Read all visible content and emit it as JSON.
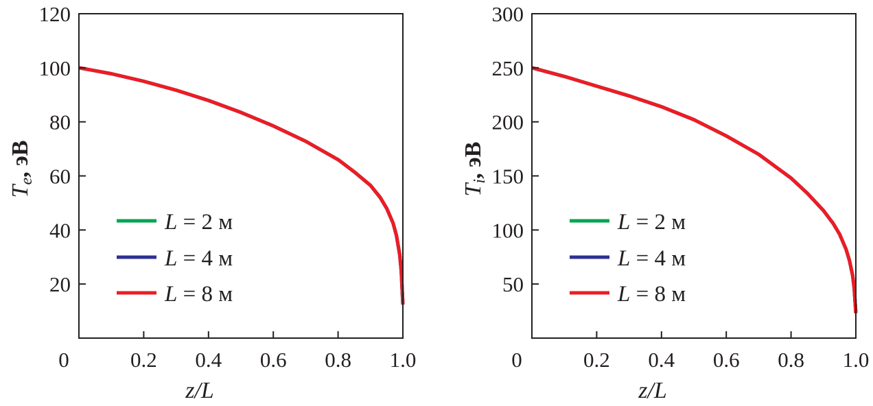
{
  "chart_data": [
    {
      "type": "line",
      "title": "",
      "xlabel": "z/L",
      "ylabel_main": "T",
      "ylabel_sub": "e",
      "ylabel_unit": ", эВ",
      "xlim": [
        0,
        1.0
      ],
      "ylim": [
        0,
        120
      ],
      "xticks": [
        0.2,
        0.4,
        0.6,
        0.8
      ],
      "xtick_labels": [
        "0",
        "0.2",
        "0.4",
        "0.6",
        "0.8",
        "1.0"
      ],
      "yticks": [
        20,
        40,
        60,
        80,
        100,
        120
      ],
      "ytick_labels": [
        "20",
        "40",
        "60",
        "80",
        "100",
        "120"
      ],
      "legend_placement": "lower-left",
      "x": [
        0,
        0.1,
        0.2,
        0.3,
        0.4,
        0.5,
        0.6,
        0.7,
        0.8,
        0.85,
        0.9,
        0.93,
        0.95,
        0.97,
        0.98,
        0.99,
        0.995,
        1.0
      ],
      "series": [
        {
          "name": "L = 2 м",
          "color": "#00a651",
          "values": [
            100,
            97.8,
            95,
            91.7,
            87.9,
            83.5,
            78.5,
            72.8,
            66,
            61.5,
            56.5,
            52,
            48,
            42.5,
            38,
            31,
            25,
            12.4
          ]
        },
        {
          "name": "L = 4 м",
          "color": "#2e3192",
          "values": [
            100,
            97.8,
            95,
            91.7,
            87.9,
            83.5,
            78.5,
            72.8,
            66,
            61.5,
            56.5,
            52,
            48,
            42.5,
            38,
            31,
            25,
            12.4
          ]
        },
        {
          "name": "L = 8 м",
          "color": "#ed1c24",
          "values": [
            100,
            97.8,
            95,
            91.7,
            87.9,
            83.5,
            78.5,
            72.8,
            66,
            61.5,
            56.5,
            52,
            48,
            42.5,
            38,
            31,
            25,
            12.4
          ]
        }
      ],
      "legend": [
        {
          "var": "L",
          "rest": " = 2 м"
        },
        {
          "var": "L",
          "rest": " = 4 м"
        },
        {
          "var": "L",
          "rest": " = 8 м"
        }
      ]
    },
    {
      "type": "line",
      "title": "",
      "xlabel": "z/L",
      "ylabel_main": "T",
      "ylabel_sub": "i",
      "ylabel_unit": ", эВ",
      "xlim": [
        0,
        1.0
      ],
      "ylim": [
        0,
        300
      ],
      "xticks": [
        0.2,
        0.4,
        0.6,
        0.8
      ],
      "xtick_labels": [
        "0",
        "0.2",
        "0.4",
        "0.6",
        "0.8",
        "1.0"
      ],
      "yticks": [
        50,
        100,
        150,
        200,
        250,
        300
      ],
      "ytick_labels": [
        "50",
        "100",
        "150",
        "200",
        "250",
        "300"
      ],
      "legend_placement": "lower-left",
      "x": [
        0,
        0.1,
        0.2,
        0.3,
        0.4,
        0.5,
        0.6,
        0.7,
        0.8,
        0.85,
        0.9,
        0.93,
        0.95,
        0.97,
        0.98,
        0.99,
        0.995,
        1.0
      ],
      "series": [
        {
          "name": "L = 2 м",
          "color": "#00a651",
          "values": [
            250,
            242,
            233,
            224,
            214,
            202,
            187,
            170,
            148,
            134,
            118,
            106,
            96,
            82,
            72,
            58,
            46,
            23
          ]
        },
        {
          "name": "L = 4 м",
          "color": "#2e3192",
          "values": [
            250,
            242,
            233,
            224,
            214,
            202,
            187,
            170,
            148,
            134,
            118,
            106,
            96,
            82,
            72,
            58,
            46,
            23
          ]
        },
        {
          "name": "L = 8 м",
          "color": "#ed1c24",
          "values": [
            250,
            242,
            233,
            224,
            214,
            202,
            187,
            170,
            148,
            134,
            118,
            106,
            96,
            82,
            72,
            58,
            46,
            23
          ]
        }
      ],
      "legend": [
        {
          "var": "L",
          "rest": " = 2 м"
        },
        {
          "var": "L",
          "rest": " = 4 м"
        },
        {
          "var": "L",
          "rest": " = 8 м"
        }
      ]
    }
  ]
}
